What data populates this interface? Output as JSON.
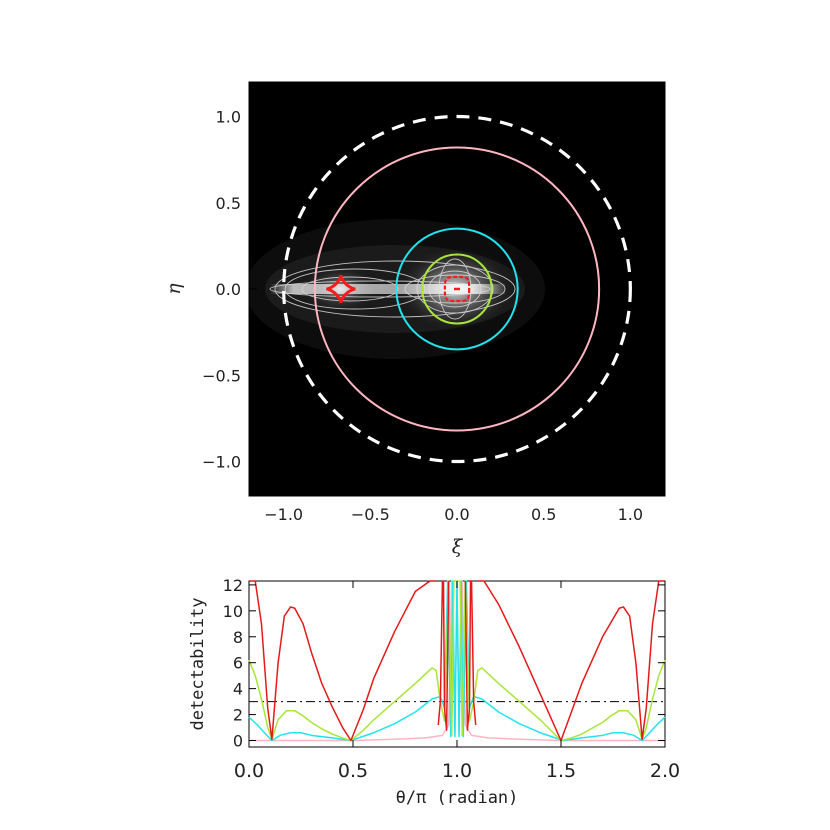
{
  "chart_data": [
    {
      "type": "heatmap",
      "xlabel": "ξ",
      "ylabel": "η",
      "xlim": [
        -1.2,
        1.2
      ],
      "ylim": [
        -1.2,
        1.2
      ],
      "xticks": [
        "−1.0",
        "−0.5",
        "0.0",
        "0.5",
        "1.0"
      ],
      "xtick_values": [
        -1.0,
        -0.5,
        0.0,
        0.5,
        1.0
      ],
      "yticks": [
        "−1.0",
        "−0.5",
        "0.0",
        "0.5",
        "1.0"
      ],
      "ytick_values": [
        -1.0,
        -0.5,
        0.0,
        0.5,
        1.0
      ],
      "background": "#000000",
      "circles": [
        {
          "center": [
            0,
            0
          ],
          "radius": 1.0,
          "color": "#ffffff",
          "style": "dashed"
        },
        {
          "center": [
            0,
            0
          ],
          "radius": 0.82,
          "color": "#ffb6c1",
          "style": "solid"
        },
        {
          "center": [
            0,
            0
          ],
          "radius": 0.35,
          "color": "#22e4ee",
          "style": "solid"
        },
        {
          "center": [
            0,
            0
          ],
          "radius": 0.2,
          "color": "#a8e63a",
          "style": "solid"
        }
      ],
      "caustics": [
        {
          "center": [
            -0.67,
            0.0
          ],
          "size": 0.07,
          "color": "#ff1a1a",
          "shape": "astroid"
        },
        {
          "center": [
            0.0,
            0.0
          ],
          "size": 0.07,
          "color": "#ff1a1a",
          "shape": "rounded-square"
        }
      ]
    },
    {
      "type": "line",
      "xlabel": "θ/π (radian)",
      "ylabel": "detectability",
      "xlim": [
        0.0,
        2.0
      ],
      "ylim": [
        -0.5,
        12.3
      ],
      "xticks": [
        "0.0",
        "0.5",
        "1.0",
        "1.5",
        "2.0"
      ],
      "xtick_values": [
        0.0,
        0.5,
        1.0,
        1.5,
        2.0
      ],
      "yticks": [
        "0",
        "2",
        "4",
        "6",
        "8",
        "10",
        "12"
      ],
      "ytick_values": [
        0,
        2,
        4,
        6,
        8,
        10,
        12
      ],
      "threshold": {
        "y": 3.0,
        "style": "dash-dot",
        "color": "#000000"
      },
      "series": [
        {
          "color": "#e41a1a",
          "x": [
            0.0,
            0.03,
            0.06,
            0.09,
            0.11,
            0.14,
            0.17,
            0.2,
            0.22,
            0.26,
            0.3,
            0.35,
            0.4,
            0.45,
            0.49,
            0.55,
            0.6,
            0.7,
            0.8,
            0.87,
            0.9
          ],
          "y": [
            12.3,
            12.3,
            9.0,
            2.5,
            0.1,
            6.0,
            9.6,
            10.3,
            10.2,
            9.0,
            6.8,
            4.4,
            2.6,
            1.0,
            0.0,
            2.4,
            4.8,
            8.4,
            11.5,
            12.3,
            12.3
          ]
        },
        {
          "color": "#e41a1a",
          "x": [
            1.1,
            1.13,
            1.2,
            1.3,
            1.4,
            1.5,
            1.55,
            1.6,
            1.7,
            1.78,
            1.8,
            1.83,
            1.86,
            1.89,
            1.91,
            1.94,
            1.97,
            2.0
          ],
          "y": [
            12.3,
            12.3,
            10.5,
            7.2,
            3.6,
            0.0,
            2.2,
            4.4,
            8.0,
            10.2,
            10.3,
            9.6,
            6.0,
            0.1,
            2.5,
            9.0,
            12.3,
            12.3
          ]
        },
        {
          "color": "#e41a1a",
          "x": [
            0.91,
            0.92,
            0.93,
            0.935,
            0.94,
            0.95,
            0.96
          ],
          "y": [
            1.2,
            3.0,
            12.3,
            12.3,
            2.5,
            0.8,
            12.3
          ]
        },
        {
          "color": "#e41a1a",
          "x": [
            1.04,
            1.05,
            1.06,
            1.065,
            1.07,
            1.08,
            1.09
          ],
          "y": [
            12.3,
            0.8,
            2.5,
            12.3,
            12.3,
            3.0,
            1.2
          ]
        },
        {
          "color": "#a8e63a",
          "x": [
            0.0,
            0.03,
            0.06,
            0.09,
            0.11,
            0.14,
            0.18,
            0.22,
            0.26,
            0.3,
            0.35,
            0.4,
            0.45,
            0.49,
            0.55,
            0.6,
            0.7,
            0.8,
            0.88,
            0.9,
            0.92,
            0.94,
            0.96,
            0.975,
            0.985,
            1.0,
            1.015,
            1.025,
            1.04,
            1.06,
            1.08,
            1.1,
            1.12,
            1.2,
            1.3,
            1.4,
            1.45,
            1.5,
            1.55,
            1.6,
            1.7,
            1.74,
            1.78,
            1.82,
            1.86,
            1.89,
            1.91,
            1.94,
            1.97,
            2.0
          ],
          "y": [
            6.2,
            5.0,
            3.2,
            1.0,
            0.1,
            1.6,
            2.3,
            2.3,
            1.9,
            1.4,
            0.9,
            0.5,
            0.2,
            0.0,
            0.8,
            1.6,
            3.0,
            4.4,
            5.6,
            5.4,
            3.0,
            1.5,
            12.3,
            0.4,
            12.3,
            12.3,
            12.3,
            0.4,
            12.3,
            1.5,
            3.0,
            5.4,
            5.6,
            4.4,
            3.0,
            1.6,
            0.8,
            0.0,
            0.2,
            0.5,
            1.4,
            1.9,
            2.3,
            2.3,
            1.6,
            0.1,
            1.0,
            3.2,
            5.0,
            6.2
          ]
        },
        {
          "color": "#22e4ee",
          "x": [
            0.0,
            0.04,
            0.08,
            0.11,
            0.15,
            0.2,
            0.25,
            0.3,
            0.4,
            0.49,
            0.6,
            0.7,
            0.8,
            0.88,
            0.92,
            0.94,
            0.955,
            0.97,
            0.98,
            0.99,
            1.0,
            1.01,
            1.02,
            1.03,
            1.045,
            1.06,
            1.08,
            1.12,
            1.2,
            1.3,
            1.4,
            1.51,
            1.6,
            1.7,
            1.75,
            1.8,
            1.85,
            1.89,
            1.92,
            1.96,
            2.0
          ],
          "y": [
            1.8,
            1.2,
            0.5,
            0.0,
            0.4,
            0.6,
            0.6,
            0.4,
            0.2,
            0.0,
            0.6,
            1.3,
            2.2,
            3.2,
            3.4,
            2.5,
            12.3,
            0.3,
            12.3,
            0.3,
            12.3,
            0.3,
            12.3,
            0.3,
            12.3,
            2.5,
            3.4,
            3.2,
            2.2,
            1.3,
            0.6,
            0.0,
            0.2,
            0.4,
            0.6,
            0.6,
            0.4,
            0.0,
            0.5,
            1.2,
            1.8
          ]
        },
        {
          "color": "#ffb6c1",
          "x": [
            0.0,
            0.1,
            0.3,
            0.5,
            0.7,
            0.85,
            0.93,
            0.96,
            0.975,
            0.99,
            1.0,
            1.01,
            1.025,
            1.04,
            1.07,
            1.15,
            1.3,
            1.5,
            1.7,
            1.9,
            2.0
          ],
          "y": [
            0.0,
            0.0,
            0.0,
            0.0,
            0.1,
            0.2,
            0.4,
            1.2,
            12.3,
            0.6,
            12.3,
            0.6,
            12.3,
            1.2,
            0.4,
            0.2,
            0.1,
            0.0,
            0.0,
            0.0,
            0.0
          ]
        }
      ]
    }
  ]
}
